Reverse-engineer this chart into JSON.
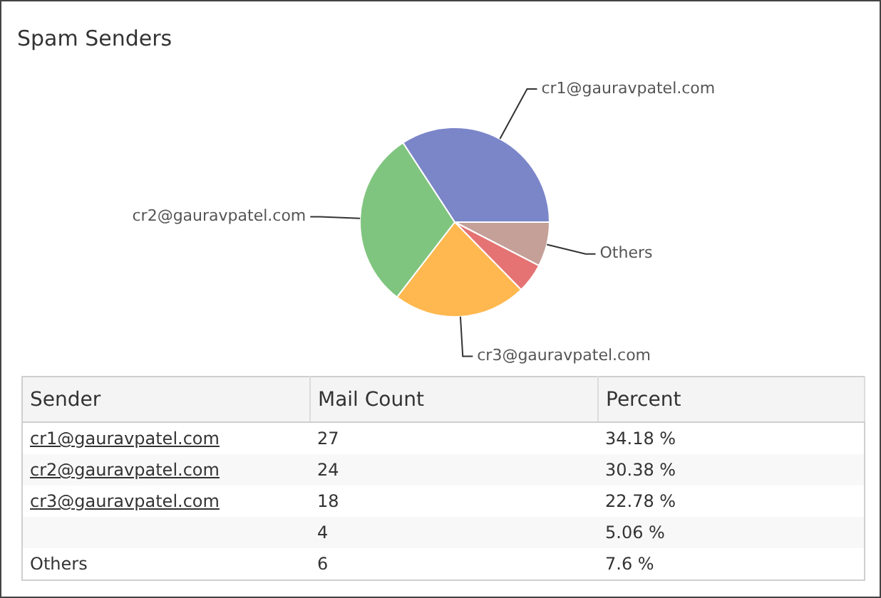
{
  "chart_data": {
    "type": "pie",
    "title": "Spam Senders",
    "categories": [
      "cr1@gauravpatel.com",
      "cr2@gauravpatel.com",
      "cr3@gauravpatel.com",
      null,
      "Others"
    ],
    "values": [
      34.18,
      30.38,
      22.78,
      5.06,
      7.6
    ],
    "colors": [
      "#7b86c9",
      "#80c57f",
      "#ffb84f",
      "#e57373",
      "#c4a099"
    ],
    "annotations": [
      "Sender",
      "Mail Count",
      "Percent",
      "27",
      "34.18 %",
      "24",
      "30.38 %",
      "18",
      "22.78 %",
      "4",
      "5.06 %",
      "6",
      "7.6 %"
    ]
  }
}
